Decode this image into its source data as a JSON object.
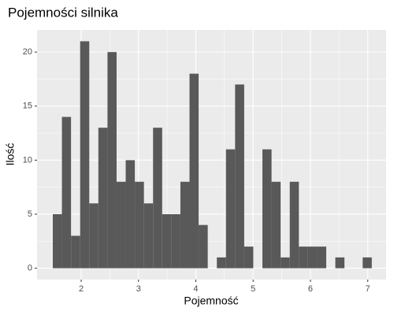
{
  "chart_data": {
    "type": "histogram",
    "title": "Pojemności silnika",
    "x_label": "Pojemność",
    "y_label": "Ilość",
    "bins": [
      1.505,
      1.664,
      1.823,
      1.982,
      2.141,
      2.3,
      2.459,
      2.618,
      2.777,
      2.936,
      3.095,
      3.254,
      3.413,
      3.572,
      3.731,
      3.89,
      4.049,
      4.208,
      4.367,
      4.526,
      4.685,
      4.844,
      5.003,
      5.162,
      5.321,
      5.48,
      5.639,
      5.798,
      5.957,
      6.116,
      6.275,
      6.434,
      6.593,
      6.752,
      6.911,
      7.07
    ],
    "values": [
      5,
      14,
      3,
      21,
      6,
      13,
      20,
      8,
      10,
      8,
      6,
      13,
      5,
      5,
      8,
      18,
      4,
      0,
      1,
      11,
      17,
      2,
      0,
      11,
      8,
      1,
      8,
      2,
      2,
      2,
      0,
      1,
      0,
      0,
      1
    ],
    "color": "#595959",
    "xlim": [
      1.23,
      7.32
    ],
    "xticks": [
      2,
      3,
      4,
      5,
      6,
      7
    ],
    "ylim": [
      -1.05,
      22.05
    ],
    "yticks": [
      0,
      5,
      10,
      15,
      20
    ],
    "grid": true
  }
}
